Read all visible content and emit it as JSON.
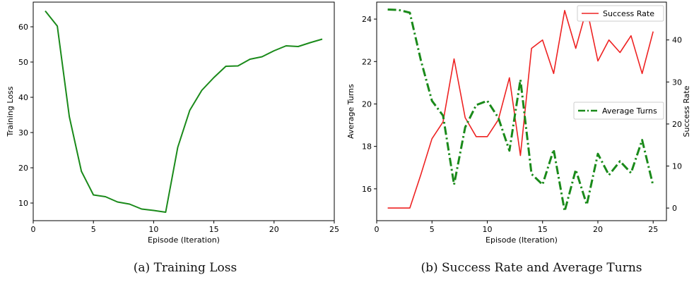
{
  "chart_data": [
    {
      "type": "line",
      "caption": "(a) Training Loss",
      "xlabel": "Episode (Iteration)",
      "ylabel": "Training Loss",
      "xlim": [
        0,
        25
      ],
      "ylim": [
        5,
        67
      ],
      "x_ticks": [
        0,
        5,
        10,
        15,
        20,
        25
      ],
      "y_ticks": [
        10,
        20,
        30,
        40,
        50,
        60
      ],
      "grid": false,
      "series": [
        {
          "color": "#1a8a1a",
          "x": [
            1,
            2,
            3,
            4,
            5,
            6,
            7,
            8,
            9,
            10,
            11,
            12,
            13,
            14,
            15,
            16,
            17,
            18,
            19,
            20,
            21,
            22,
            23,
            24
          ],
          "y": [
            64.5,
            60.2,
            34.5,
            19.0,
            12.3,
            11.8,
            10.3,
            9.7,
            8.3,
            7.9,
            7.4,
            25.8,
            36.3,
            42.0,
            45.6,
            48.8,
            48.9,
            50.8,
            51.5,
            53.2,
            54.6,
            54.4,
            55.5,
            56.5
          ]
        }
      ]
    },
    {
      "type": "line",
      "caption": "(b) Success Rate and Average Turns",
      "xlabel": "Episode (Iteration)",
      "ylabel": "Average Turns",
      "y2label": "Success Rate",
      "xlim": [
        0,
        26.2
      ],
      "ylim": [
        14.5,
        24.8
      ],
      "y2lim": [
        -3,
        49
      ],
      "x_ticks": [
        0,
        5,
        10,
        15,
        20,
        25
      ],
      "y_ticks": [
        16,
        18,
        20,
        22,
        24
      ],
      "y2_ticks": [
        0,
        10,
        20,
        30,
        40
      ],
      "legend": [
        "top-right",
        "middle-right"
      ],
      "series": [
        {
          "name": "Success Rate",
          "axis": "right",
          "color": "#ee2222",
          "style": "solid",
          "x": [
            1,
            2,
            3,
            4,
            5,
            6,
            7,
            8,
            9,
            10,
            11,
            12,
            13,
            14,
            15,
            16,
            17,
            18,
            19,
            20,
            21,
            22,
            23,
            24,
            25
          ],
          "y": [
            0,
            0,
            0,
            8,
            16.5,
            20.5,
            35.5,
            21.5,
            17,
            17,
            21,
            31,
            12.5,
            38,
            40,
            32,
            47,
            38,
            47.5,
            35,
            40,
            37,
            41,
            32,
            42
          ]
        },
        {
          "name": "Average Turns",
          "axis": "left",
          "color": "#1a8a1a",
          "style": "dashdot",
          "x": [
            1,
            2,
            3,
            4,
            5,
            6,
            7,
            8,
            9,
            10,
            11,
            12,
            13,
            14,
            15,
            16,
            17,
            18,
            19,
            20,
            21,
            22,
            23,
            24,
            25
          ],
          "y": [
            24.45,
            24.43,
            24.3,
            22.05,
            20.15,
            19.45,
            16.2,
            18.9,
            19.95,
            20.15,
            19.35,
            17.8,
            21.15,
            16.7,
            16.2,
            17.85,
            14.95,
            16.9,
            15.25,
            17.65,
            16.65,
            17.3,
            16.75,
            18.3,
            16.15
          ]
        }
      ]
    }
  ]
}
